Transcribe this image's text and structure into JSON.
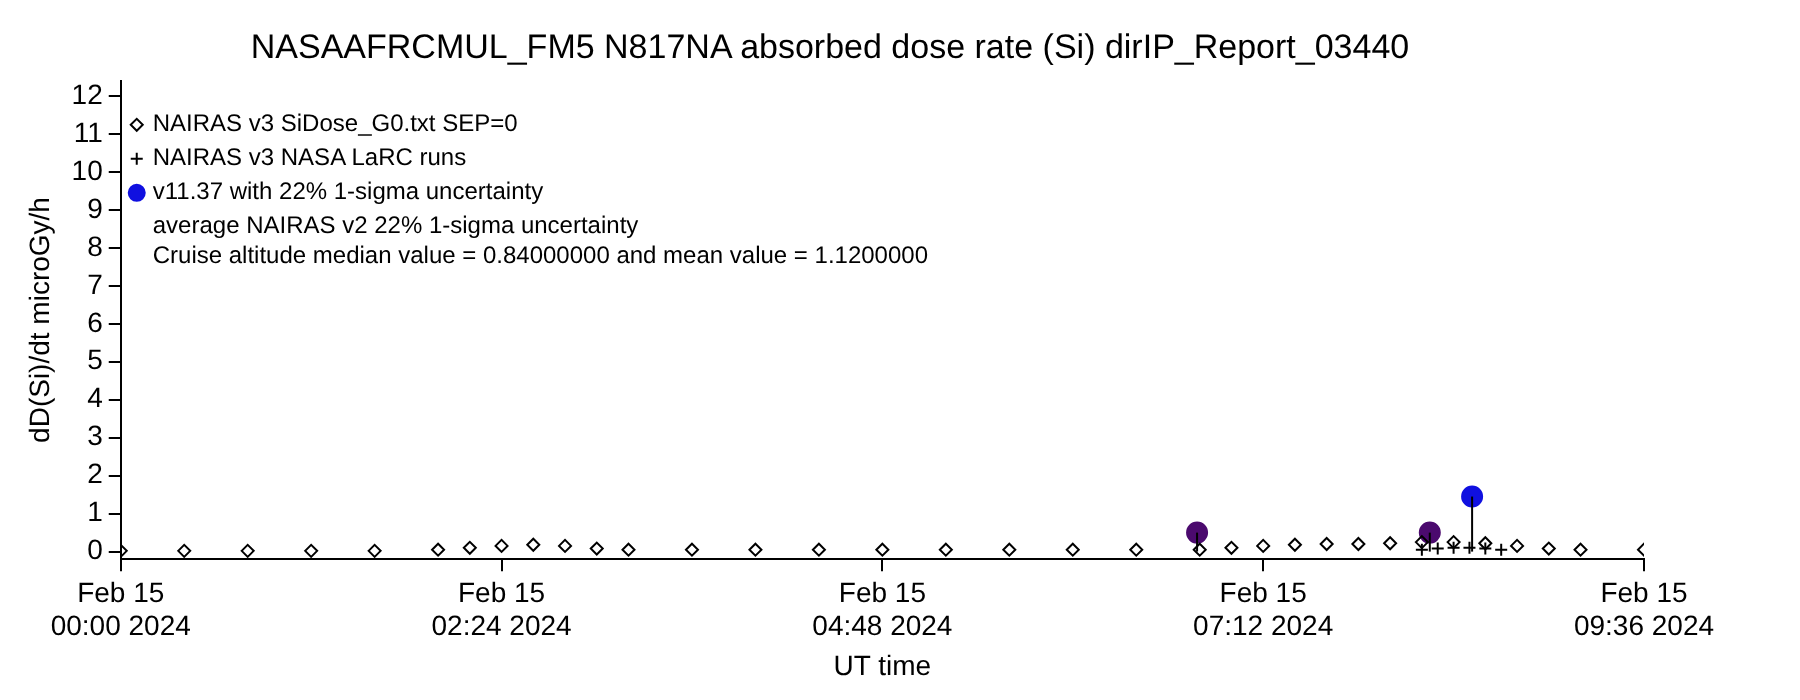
{
  "chart_data": {
    "type": "scatter",
    "title": "NASAAFRCMUL_FM5 N817NA absorbed dose rate (Si) dirIP_Report_03440",
    "xlabel": "UT time",
    "ylabel": "dD(Si)/dt microGy/h",
    "xlim": [
      "2024-02-15T00:00",
      "2024-02-15T09:36"
    ],
    "xticks": [
      {
        "value": "2024-02-15T00:00",
        "label": "Feb 15\n00:00 2024"
      },
      {
        "value": "2024-02-15T02:24",
        "label": "Feb 15\n02:24 2024"
      },
      {
        "value": "2024-02-15T04:48",
        "label": "Feb 15\n04:48 2024"
      },
      {
        "value": "2024-02-15T07:12",
        "label": "Feb 15\n07:12 2024"
      },
      {
        "value": "2024-02-15T09:36",
        "label": "Feb 15\n09:36 2024"
      }
    ],
    "ylim": [
      -0.2,
      12.4
    ],
    "yticks": [
      0,
      1,
      2,
      3,
      4,
      5,
      6,
      7,
      8,
      9,
      10,
      11,
      12
    ],
    "grid": false,
    "legend": "top left",
    "series": [
      {
        "name": "NAIRAS v3 SiDose_G0.txt SEP=0",
        "color": "#000000",
        "marker": "diamond",
        "x": [
          "2024-02-15T00:00",
          "2024-02-15T00:24",
          "2024-02-15T00:48",
          "2024-02-15T01:12",
          "2024-02-15T01:36",
          "2024-02-15T02:00",
          "2024-02-15T02:12",
          "2024-02-15T02:24",
          "2024-02-15T02:36",
          "2024-02-15T02:48",
          "2024-02-15T03:00",
          "2024-02-15T03:12",
          "2024-02-15T03:36",
          "2024-02-15T04:00",
          "2024-02-15T04:24",
          "2024-02-15T04:48",
          "2024-02-15T05:12",
          "2024-02-15T05:36",
          "2024-02-15T06:00",
          "2024-02-15T06:24",
          "2024-02-15T06:48",
          "2024-02-15T07:00",
          "2024-02-15T07:12",
          "2024-02-15T07:24",
          "2024-02-15T07:36",
          "2024-02-15T07:48",
          "2024-02-15T08:00",
          "2024-02-15T08:12",
          "2024-02-15T08:24",
          "2024-02-15T08:36",
          "2024-02-15T08:48",
          "2024-02-15T09:00",
          "2024-02-15T09:12",
          "2024-02-15T09:36"
        ],
        "values": [
          0.02,
          0.02,
          0.02,
          0.02,
          0.02,
          0.05,
          0.1,
          0.15,
          0.18,
          0.15,
          0.08,
          0.05,
          0.05,
          0.05,
          0.05,
          0.05,
          0.05,
          0.05,
          0.05,
          0.05,
          0.05,
          0.1,
          0.15,
          0.18,
          0.2,
          0.2,
          0.22,
          0.25,
          0.25,
          0.22,
          0.15,
          0.08,
          0.05,
          0.05
        ]
      },
      {
        "name": "NAIRAS v3 NASA LaRC runs",
        "color": "#000000",
        "marker": "cross",
        "x": [
          "2024-02-15T08:12",
          "2024-02-15T08:18",
          "2024-02-15T08:24",
          "2024-02-15T08:30",
          "2024-02-15T08:36",
          "2024-02-15T08:42"
        ],
        "values": [
          0.05,
          0.08,
          0.1,
          0.1,
          0.08,
          0.05
        ]
      },
      {
        "name": "v11.37 with 22% 1-sigma uncertainty",
        "color": "#1010e0",
        "colors": [
          "#4b0a6e",
          "#4b0a6e",
          "#1010e0"
        ],
        "marker": "circle",
        "x": [
          "2024-02-15T06:47",
          "2024-02-15T08:15",
          "2024-02-15T08:31"
        ],
        "values": [
          0.5,
          0.5,
          1.45
        ],
        "errors": [
          [
            0,
            0.5
          ],
          [
            0,
            0.5
          ],
          [
            0,
            1.45
          ]
        ]
      }
    ],
    "annotations": [
      "average NAIRAS v2 22% 1-sigma uncertainty",
      "Cruise altitude median value = 0.84000000 and mean value = 1.1200000"
    ]
  }
}
